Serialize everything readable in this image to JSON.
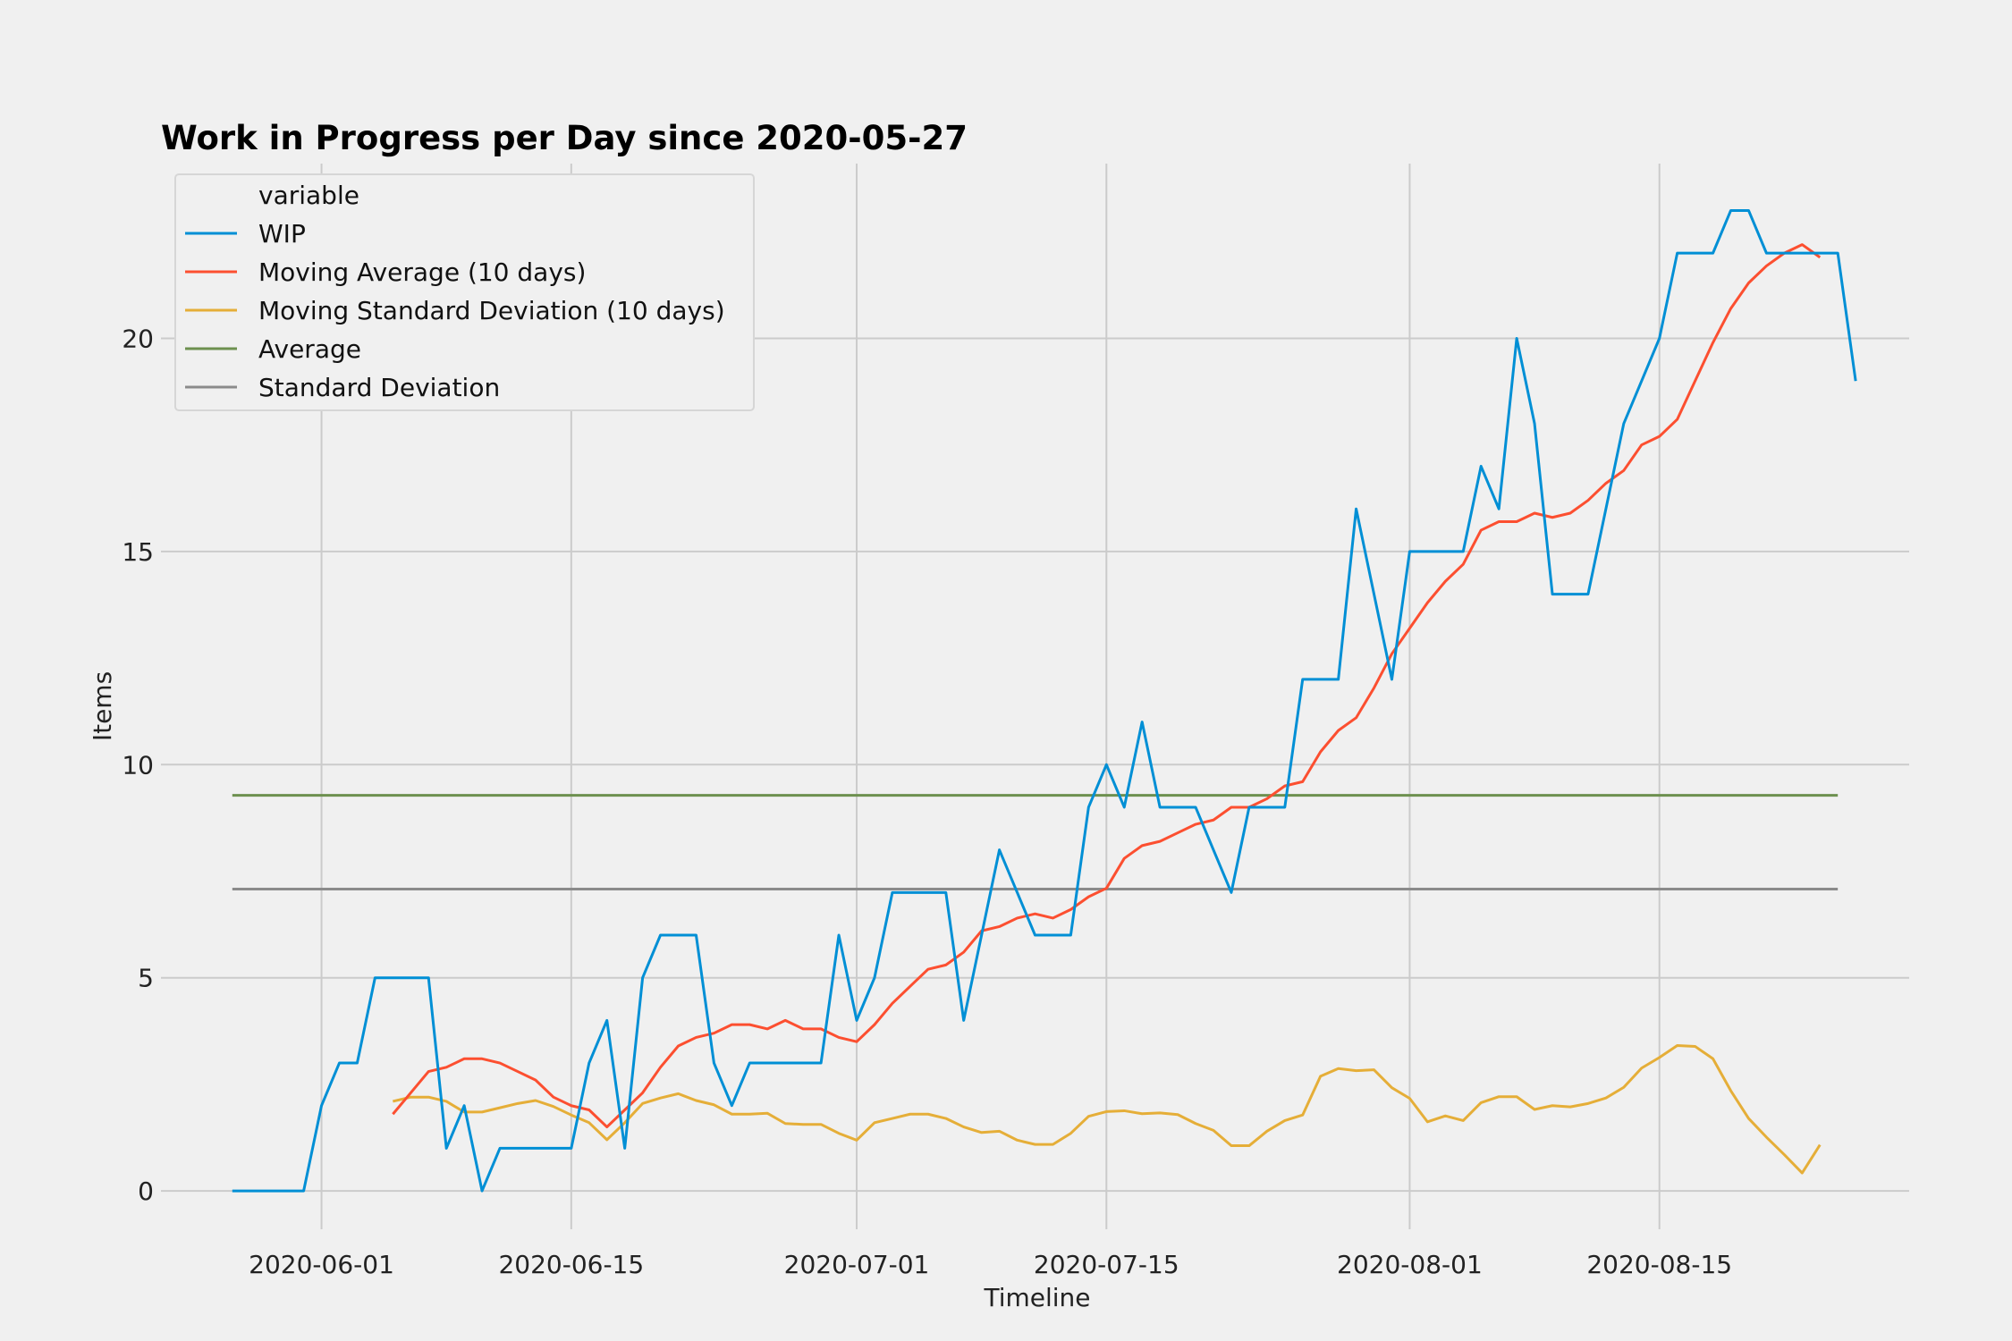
{
  "chart_data": {
    "type": "line",
    "title": "Work in Progress per Day since 2020-05-27",
    "xlabel": "Timeline",
    "ylabel": "Items",
    "x_start": "2020-05-27",
    "x_end": "2020-08-25",
    "xlim": [
      "2020-05-23",
      "2020-08-29"
    ],
    "ylim": [
      -0.9,
      24.1
    ],
    "x_ticks": [
      "2020-06-01",
      "2020-06-15",
      "2020-07-01",
      "2020-07-15",
      "2020-08-01",
      "2020-08-15"
    ],
    "y_ticks": [
      0,
      5,
      10,
      15,
      20
    ],
    "grid": true,
    "legend": {
      "title": "variable",
      "position": "top-left"
    },
    "series": [
      {
        "name": "WIP",
        "color": "#008fd5",
        "values": [
          0,
          0,
          0,
          0,
          0,
          2,
          3,
          3,
          5,
          5,
          5,
          5,
          1,
          2,
          0,
          1,
          1,
          1,
          1,
          1,
          3,
          4,
          1,
          5,
          6,
          6,
          6,
          3,
          2,
          3,
          3,
          3,
          3,
          3,
          6,
          4,
          5,
          7,
          7,
          7,
          7,
          4,
          6,
          8,
          7,
          6,
          6,
          6,
          9,
          10,
          9,
          11,
          9,
          9,
          9,
          8,
          7,
          9,
          9,
          9,
          12,
          12,
          12,
          16,
          14,
          12,
          15,
          15,
          15,
          15,
          17,
          16,
          20,
          18,
          14,
          14,
          14,
          16,
          18,
          19,
          20,
          22,
          22,
          22,
          23,
          23,
          22,
          22,
          22,
          22,
          22,
          19
        ]
      },
      {
        "name": "Moving Average (10 days)",
        "color": "#fc4f30",
        "start_index": 9,
        "values": [
          1.8,
          2.3,
          2.8,
          2.9,
          3.1,
          3.1,
          3.0,
          2.8,
          2.6,
          2.2,
          2.0,
          1.9,
          1.5,
          1.9,
          2.3,
          2.9,
          3.4,
          3.6,
          3.7,
          3.9,
          3.9,
          3.8,
          4.0,
          3.8,
          3.8,
          3.6,
          3.5,
          3.9,
          4.4,
          4.8,
          5.2,
          5.3,
          5.6,
          6.1,
          6.2,
          6.4,
          6.5,
          6.4,
          6.6,
          6.9,
          7.1,
          7.8,
          8.1,
          8.2,
          8.4,
          8.6,
          8.7,
          9.0,
          9.0,
          9.2,
          9.5,
          9.6,
          10.3,
          10.8,
          11.1,
          11.8,
          12.6,
          13.2,
          13.8,
          14.3,
          14.7,
          15.5,
          15.7,
          15.7,
          15.9,
          15.8,
          15.9,
          16.2,
          16.6,
          16.9,
          17.5,
          17.7,
          18.1,
          19.0,
          19.9,
          20.7,
          21.3,
          21.7,
          22.0,
          22.2,
          21.9
        ]
      },
      {
        "name": "Moving Standard Deviation (10 days)",
        "color": "#e5ae38",
        "start_index": 9,
        "values": [
          2.1,
          2.2,
          2.2,
          2.1,
          1.85,
          1.85,
          1.95,
          2.05,
          2.12,
          1.98,
          1.78,
          1.6,
          1.2,
          1.6,
          2.05,
          2.18,
          2.28,
          2.12,
          2.02,
          1.8,
          1.8,
          1.82,
          1.58,
          1.56,
          1.56,
          1.35,
          1.19,
          1.6,
          1.7,
          1.8,
          1.8,
          1.7,
          1.5,
          1.37,
          1.4,
          1.19,
          1.09,
          1.09,
          1.35,
          1.75,
          1.86,
          1.88,
          1.81,
          1.83,
          1.79,
          1.58,
          1.42,
          1.06,
          1.06,
          1.4,
          1.65,
          1.78,
          2.69,
          2.87,
          2.82,
          2.84,
          2.42,
          2.17,
          1.62,
          1.76,
          1.65,
          2.07,
          2.21,
          2.21,
          1.91,
          2.0,
          1.97,
          2.05,
          2.18,
          2.43,
          2.88,
          3.13,
          3.41,
          3.39,
          3.1,
          2.35,
          1.7,
          1.26,
          0.85,
          0.42,
          1.08
        ]
      },
      {
        "name": "Average",
        "color": "#6d904f",
        "values": [
          9.28,
          9.28
        ]
      },
      {
        "name": "Standard Deviation",
        "color": "#8b8b8b",
        "values": [
          7.08,
          7.08
        ]
      }
    ]
  }
}
